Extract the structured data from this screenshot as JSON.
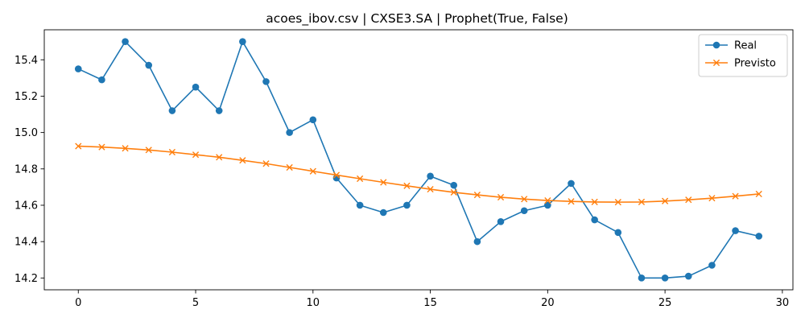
{
  "chart_data": {
    "type": "line",
    "title": "acoes_ibov.csv | CXSE3.SA | Prophet(True, False)",
    "xlabel": "",
    "ylabel": "",
    "xlim": [
      -1.45,
      30.45
    ],
    "ylim": [
      14.135,
      15.565
    ],
    "xticks": [
      0,
      5,
      10,
      15,
      20,
      25,
      30
    ],
    "yticks": [
      14.2,
      14.4,
      14.6,
      14.8,
      15.0,
      15.2,
      15.4
    ],
    "grid": false,
    "legend_position": "top-right",
    "x": [
      0,
      1,
      2,
      3,
      4,
      5,
      6,
      7,
      8,
      9,
      10,
      11,
      12,
      13,
      14,
      15,
      16,
      17,
      18,
      19,
      20,
      21,
      22,
      23,
      24,
      25,
      26,
      27,
      28,
      29
    ],
    "series": [
      {
        "name": "Real",
        "color": "#1f77b4",
        "marker": "circle",
        "values": [
          15.35,
          15.29,
          15.5,
          15.37,
          15.12,
          15.25,
          15.12,
          15.5,
          15.28,
          15.0,
          15.07,
          14.75,
          14.6,
          14.56,
          14.6,
          14.76,
          14.71,
          14.4,
          14.51,
          14.57,
          14.6,
          14.72,
          14.52,
          14.45,
          14.2,
          14.2,
          14.21,
          14.27,
          14.46,
          14.43
        ]
      },
      {
        "name": "Previsto",
        "color": "#ff7f0e",
        "marker": "x",
        "values": [
          14.925,
          14.92,
          14.913,
          14.904,
          14.892,
          14.878,
          14.864,
          14.847,
          14.829,
          14.808,
          14.787,
          14.766,
          14.746,
          14.726,
          14.707,
          14.688,
          14.671,
          14.657,
          14.644,
          14.634,
          14.626,
          14.621,
          14.618,
          14.617,
          14.618,
          14.623,
          14.63,
          14.639,
          14.65,
          14.662
        ]
      }
    ]
  }
}
